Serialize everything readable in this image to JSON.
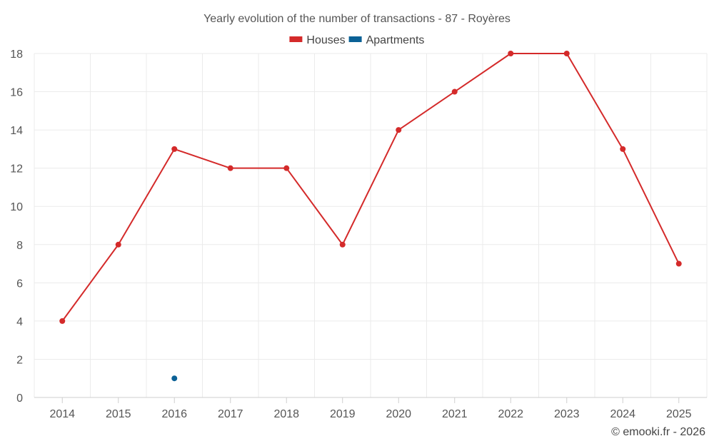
{
  "chart_data": {
    "type": "line",
    "title": "Yearly evolution of the number of transactions - 87 - Royères",
    "categories": [
      "2014",
      "2015",
      "2016",
      "2017",
      "2018",
      "2019",
      "2020",
      "2021",
      "2022",
      "2023",
      "2024",
      "2025"
    ],
    "series": [
      {
        "name": "Houses",
        "color": "#d42a2a",
        "values": [
          4,
          8,
          13,
          12,
          12,
          8,
          14,
          16,
          18,
          18,
          13,
          7
        ]
      },
      {
        "name": "Apartments",
        "color": "#0b6196",
        "values": [
          null,
          null,
          1,
          null,
          null,
          null,
          null,
          null,
          null,
          null,
          null,
          null
        ]
      }
    ],
    "xlabel": "",
    "ylabel": "",
    "ylim": [
      0,
      18
    ],
    "yticks": [
      "0",
      "2",
      "4",
      "6",
      "8",
      "10",
      "12",
      "14",
      "16",
      "18"
    ],
    "grid": true,
    "legend": "top-center"
  },
  "credit": "© emooki.fr - 2026"
}
